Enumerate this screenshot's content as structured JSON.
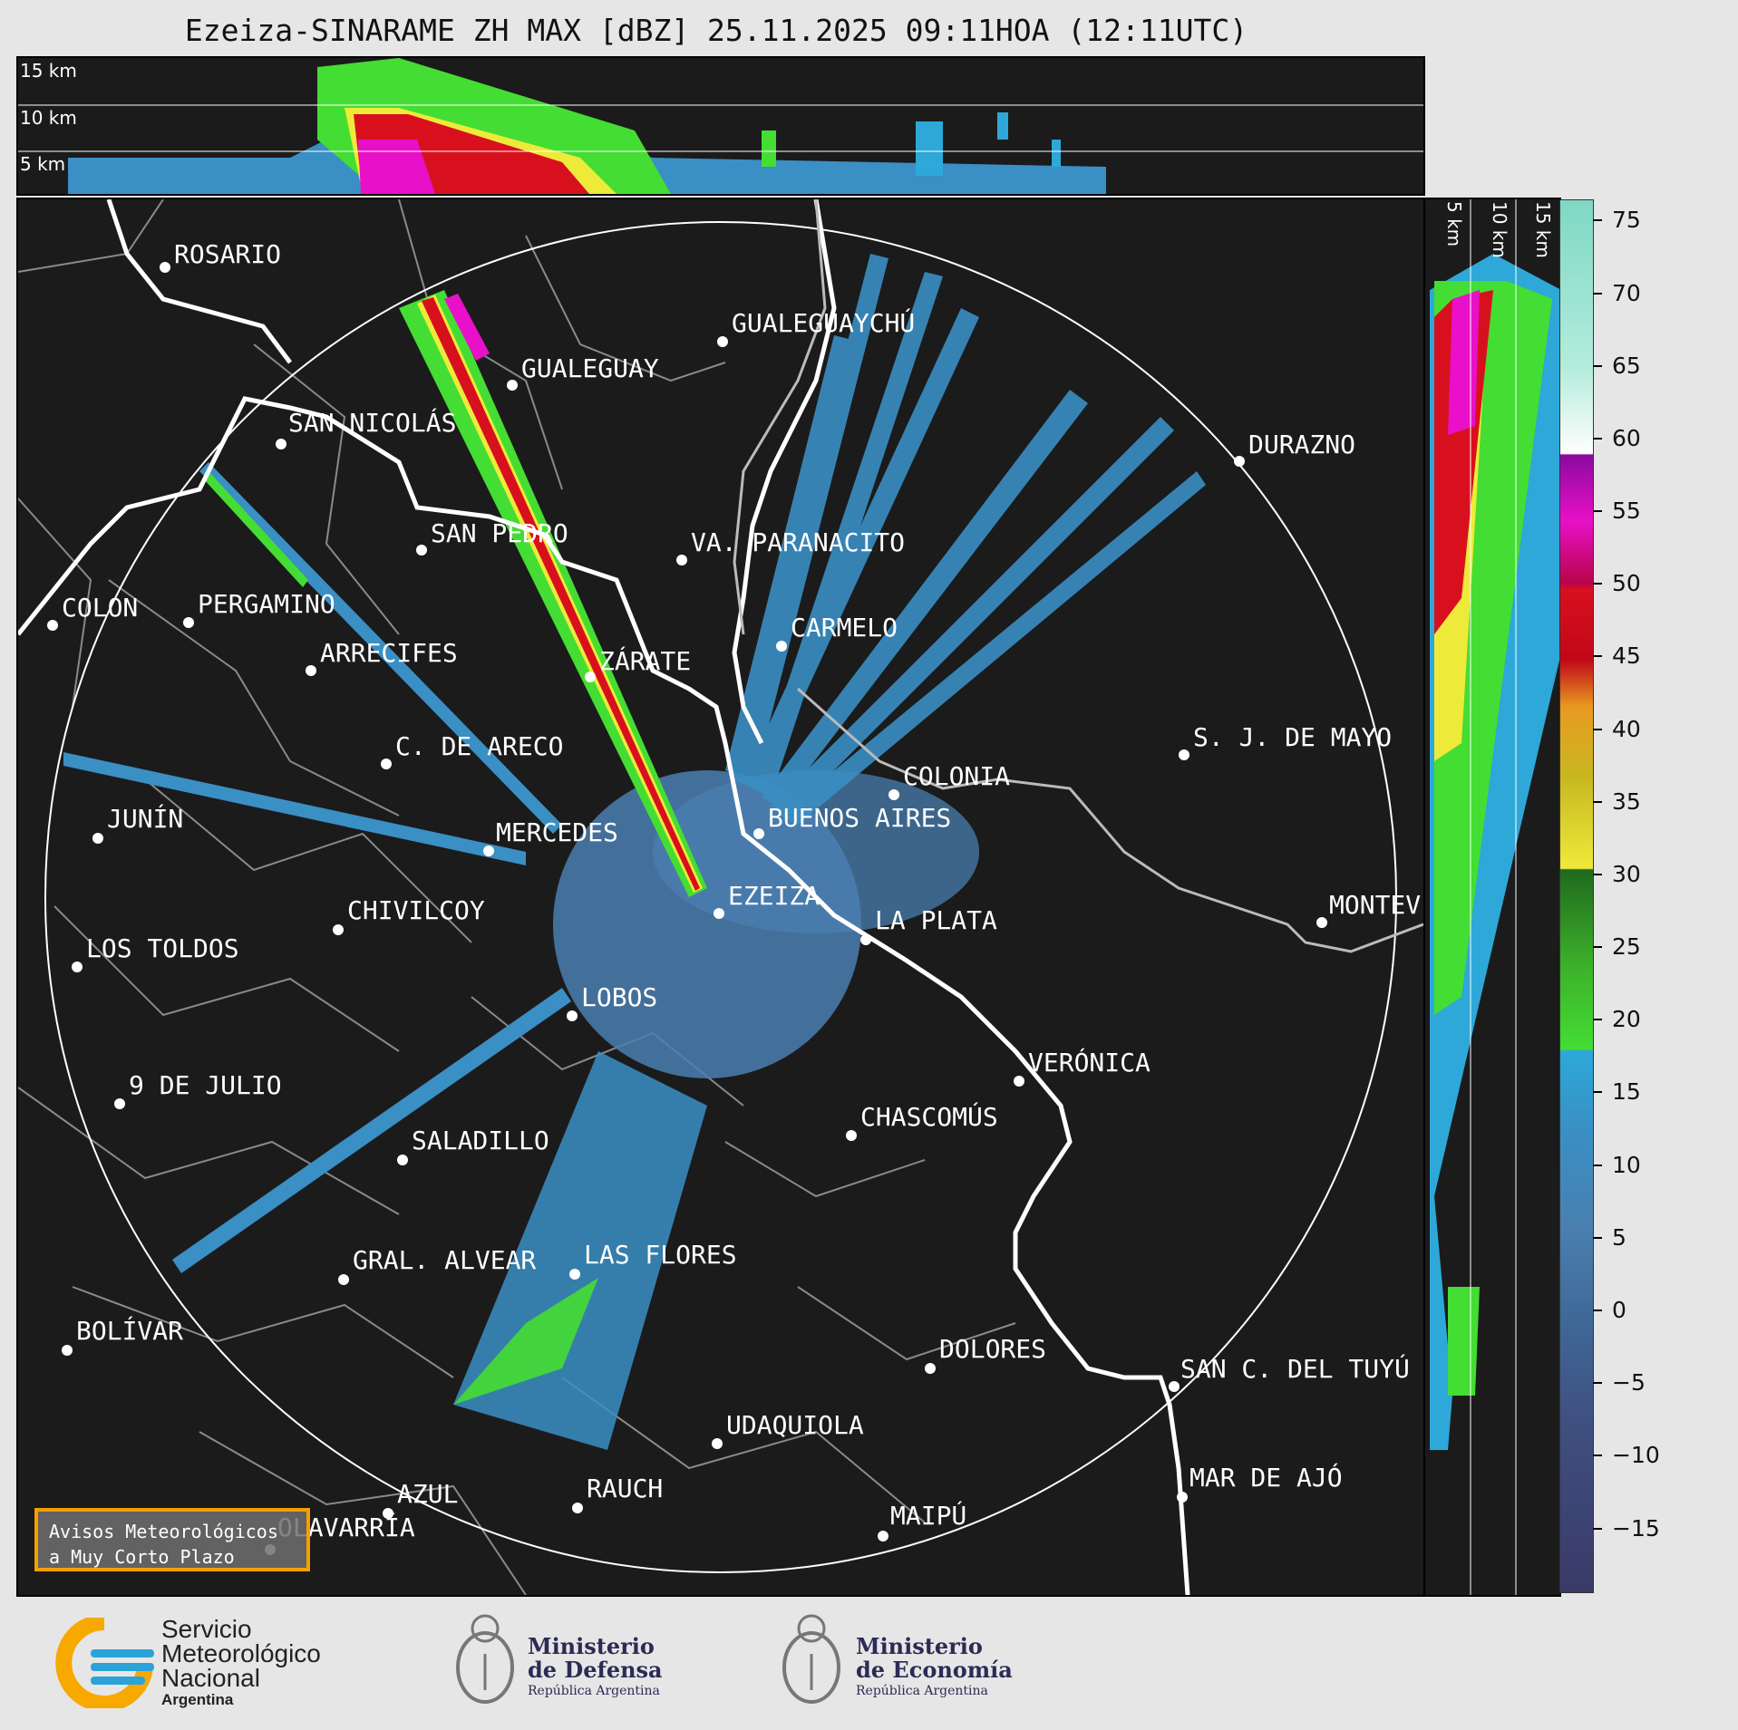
{
  "title": "Ezeiza-SINARAME ZH MAX [dBZ] 25.11.2025 09:11HOA (12:11UTC)",
  "top_panel": {
    "labels": [
      "15 km",
      "10 km",
      "5 km"
    ]
  },
  "side_panel": {
    "labels": [
      "5 km",
      "10 km",
      "15 km"
    ]
  },
  "colorbar": {
    "ticks": [
      "75",
      "70",
      "65",
      "60",
      "55",
      "50",
      "45",
      "40",
      "35",
      "30",
      "25",
      "20",
      "15",
      "10",
      "5",
      "0",
      "−5",
      "−10",
      "−15"
    ],
    "colors": {
      "noise": "#4a7fb0",
      "light": "#2da8d8",
      "green": "#44dd33",
      "yellow": "#eeea3a",
      "orange": "#e89a20",
      "red": "#d8101e",
      "magenta": "#e810c8",
      "purple": "#8a0a9e"
    }
  },
  "cities": {
    "rosario": "ROSARIO",
    "gualeguaychu": "GUALEGUAYCHÚ",
    "gualeguay": "GUALEGUAY",
    "san_nicolas": "SAN NICOLÁS",
    "durazno": "DURAZNO",
    "san_pedro": "SAN PEDRO",
    "villa_paranacito": "VA. PARANACITO",
    "colon": "COLON",
    "pergamino": "PERGAMINO",
    "carmelo": "CARMELO",
    "arrecifes": "ARRECIFES",
    "zarate": "ZÁRATE",
    "sj_de_mayo": "S. J. DE MAYO",
    "c_de_areco": "C. DE ARECO",
    "colonia": "COLONIA",
    "junin": "JUNÍN",
    "buenos_aires": "BUENOS AIRES",
    "mercedes": "MERCEDES",
    "montevideo": "MONTEV",
    "ezeiza": "EZEIZA",
    "chivilcoy": "CHIVILCOY",
    "la_plata": "LA PLATA",
    "los_toldos": "LOS TOLDOS",
    "lobos": "LOBOS",
    "veronica": "VERÓNICA",
    "nueve_de_julio": "9 DE JULIO",
    "chascomus": "CHASCOMÚS",
    "saladillo": "SALADILLO",
    "gral_alvear": "GRAL. ALVEAR",
    "las_flores": "LAS FLORES",
    "bolivar": "BOLÍVAR",
    "dolores": "DOLORES",
    "san_c_del_tuyu": "SAN C. DEL TUYÚ",
    "udaquiola": "UDAQUIOLA",
    "rauch": "RAUCH",
    "mar_de_ajo": "MAR DE AJÓ",
    "azul": "AZUL",
    "maipu": "MAIPÚ",
    "olavarria": "OLAVARRÍA"
  },
  "avisos": {
    "line1": "Avisos Meteorológicos",
    "line2": "a Muy Corto Plazo"
  },
  "footer": {
    "smn": {
      "line1": "Servicio",
      "line2": "Meteorológico",
      "line3": "Nacional",
      "line4": "Argentina"
    },
    "defensa": {
      "line1": "Ministerio",
      "line2": "de Defensa",
      "line3": "República Argentina"
    },
    "economia": {
      "line1": "Ministerio",
      "line2": "de Economía",
      "line3": "República Argentina"
    }
  }
}
